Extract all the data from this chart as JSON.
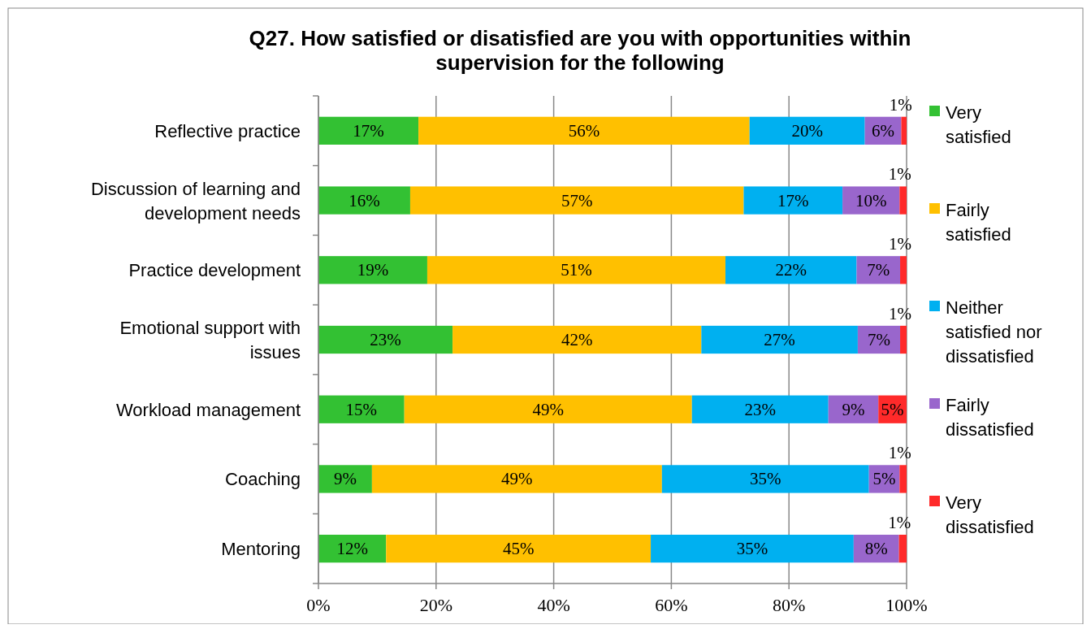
{
  "chart_data": {
    "type": "bar",
    "orientation": "horizontal",
    "stacked": true,
    "title": "Q27. How satisfied or disatisfied are you with opportunities within supervision for the following",
    "categories": [
      "Reflective practice",
      "Discussion of learning and development needs",
      "Practice development",
      "Emotional support with issues",
      "Workload management",
      "Coaching",
      "Mentoring"
    ],
    "series": [
      {
        "name": "Very satisfied",
        "color": "#33c133",
        "values": [
          17,
          15.6,
          18.5,
          22.8,
          14.6,
          9.1,
          11.5
        ],
        "value_labels": [
          "17%",
          "16%",
          "19%",
          "23%",
          "15%",
          "9%",
          "12%"
        ]
      },
      {
        "name": "Fairly satisfied",
        "color": "#ffc000",
        "values": [
          56.3,
          56.7,
          50.7,
          42.3,
          48.9,
          49.3,
          45
        ],
        "value_labels": [
          "56%",
          "57%",
          "51%",
          "42%",
          "49%",
          "49%",
          "45%"
        ]
      },
      {
        "name": "Neither satisfied nor dissatisfied",
        "color": "#00b0f0",
        "values": [
          19.6,
          16.8,
          22.3,
          26.6,
          23.2,
          35.2,
          34.5
        ],
        "value_labels": [
          "20%",
          "17%",
          "22%",
          "27%",
          "23%",
          "35%",
          "35%"
        ]
      },
      {
        "name": "Fairly dissatisfied",
        "color": "#9966cc",
        "values": [
          6.2,
          9.7,
          7.4,
          7.2,
          8.5,
          5.2,
          7.7
        ],
        "value_labels": [
          "6%",
          "10%",
          "7%",
          "7%",
          "9%",
          "5%",
          "8%"
        ]
      },
      {
        "name": "Very dissatisfied",
        "color": "#ff2a2a",
        "values": [
          0.9,
          1.2,
          1.1,
          1.1,
          4.8,
          1.2,
          1.3
        ],
        "value_labels": [
          "1%",
          "1%",
          "1%",
          "1%",
          "5%",
          "1%",
          "1%"
        ]
      }
    ],
    "xlim": [
      0,
      100
    ],
    "xticks": [
      {
        "value": 0,
        "label": "0%"
      },
      {
        "value": 20,
        "label": "20%"
      },
      {
        "value": 40,
        "label": "40%"
      },
      {
        "value": 60,
        "label": "60%"
      },
      {
        "value": 80,
        "label": "80%"
      },
      {
        "value": 100,
        "label": "100%"
      }
    ],
    "grid": "x",
    "legend": "right"
  }
}
